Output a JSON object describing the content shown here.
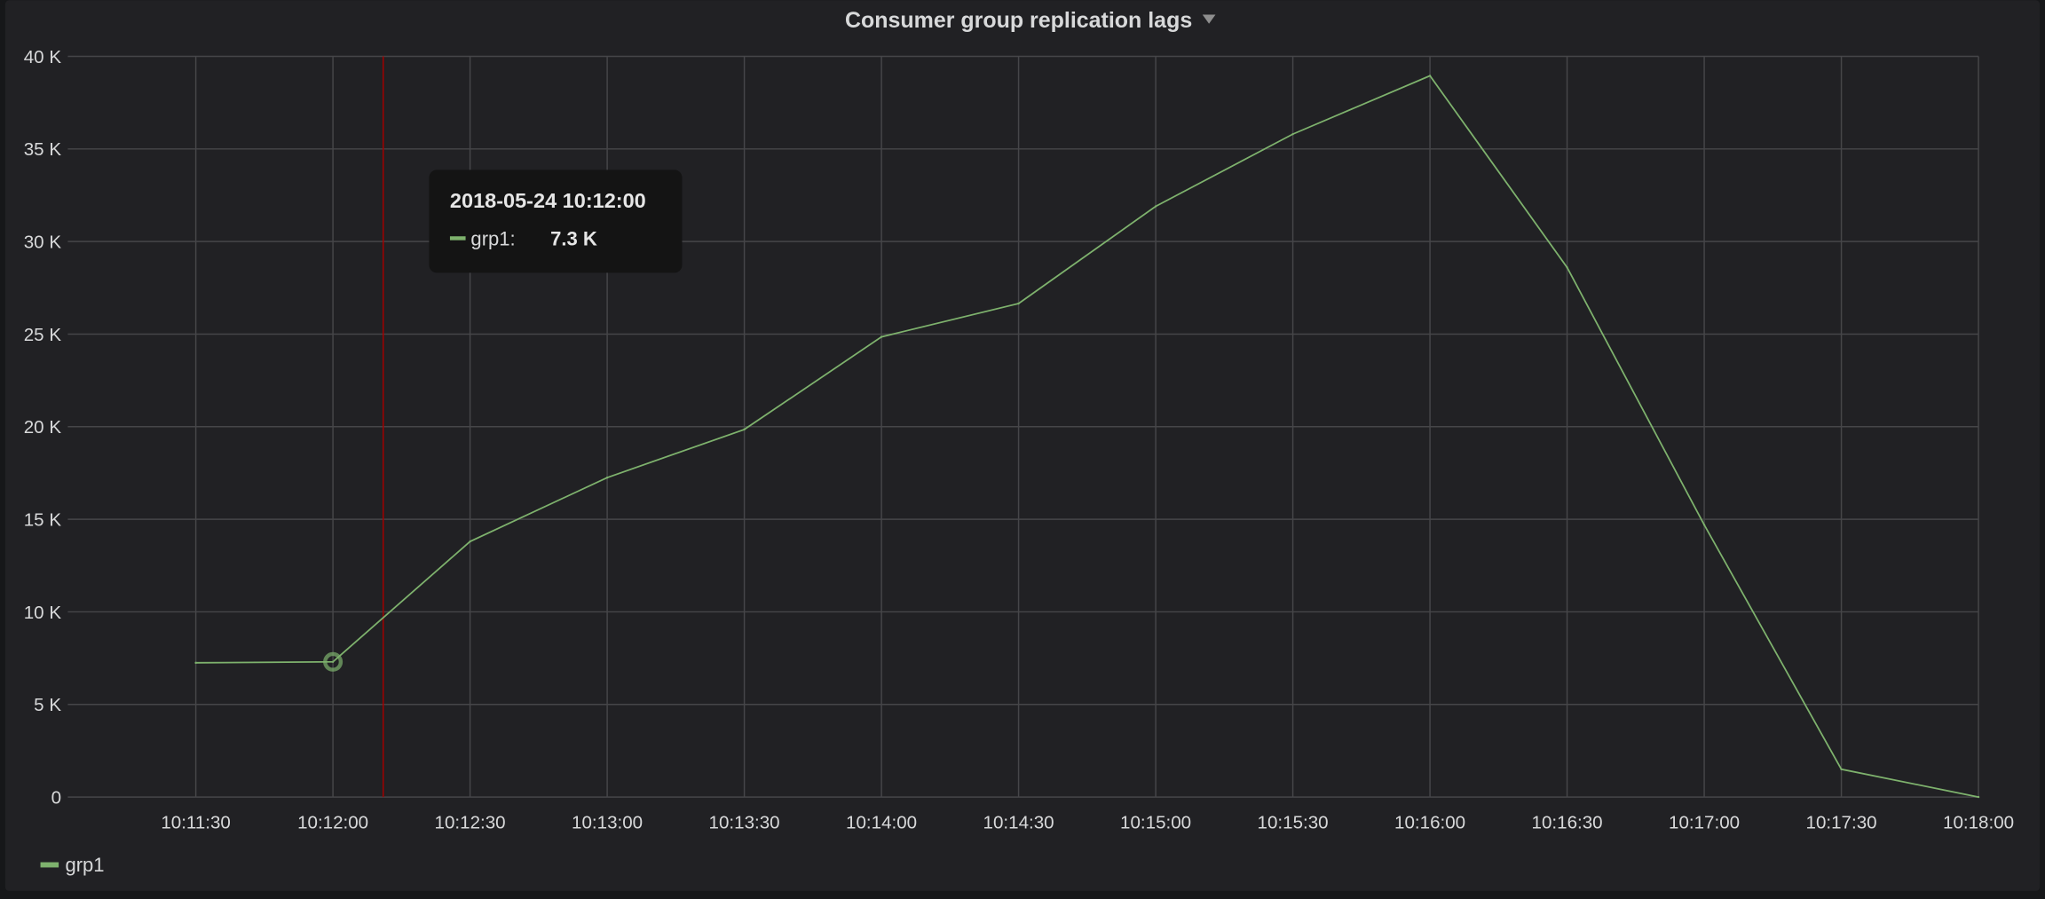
{
  "panel": {
    "title": "Consumer group replication lags",
    "menu_icon": "caret-down-icon"
  },
  "colors": {
    "background": "#212124",
    "series_grp1": "#7eb26d",
    "cursor": "#a30000",
    "grid": "#464649",
    "text": "#d8d9da",
    "tooltip_bg": "#141414"
  },
  "tooltip": {
    "time": "2018-05-24 10:12:00",
    "series": "grp1:",
    "value": "7.3 K"
  },
  "legend": [
    {
      "name": "grp1",
      "color": "#7eb26d"
    }
  ],
  "chart_data": {
    "type": "line",
    "title": "Consumer group replication lags",
    "xlabel": "",
    "ylabel": "",
    "xlim": [
      "10:11:02",
      "10:18:00"
    ],
    "ylim": [
      0,
      40000
    ],
    "grid": true,
    "legend_position": "bottom-left",
    "x_ticks": [
      "10:11:30",
      "10:12:00",
      "10:12:30",
      "10:13:00",
      "10:13:30",
      "10:14:00",
      "10:14:30",
      "10:15:00",
      "10:15:30",
      "10:16:00",
      "10:16:30",
      "10:17:00",
      "10:17:30",
      "10:18:00"
    ],
    "y_ticks": [
      "0",
      "5 K",
      "10 K",
      "15 K",
      "20 K",
      "25 K",
      "30 K",
      "35 K",
      "40 K"
    ],
    "y_tick_values": [
      0,
      5000,
      10000,
      15000,
      20000,
      25000,
      30000,
      35000,
      40000
    ],
    "hover_time": "10:12:11",
    "highlighted_point": {
      "x": "10:12:00",
      "y": 7300
    },
    "series": [
      {
        "name": "grp1",
        "color": "#7eb26d",
        "x": [
          "10:11:30",
          "10:12:00",
          "10:12:30",
          "10:13:00",
          "10:13:30",
          "10:14:00",
          "10:14:30",
          "10:15:00",
          "10:15:30",
          "10:16:00",
          "10:16:30",
          "10:17:00",
          "10:17:30",
          "10:18:00"
        ],
        "values": [
          7250,
          7300,
          13800,
          17250,
          19850,
          24850,
          26650,
          31900,
          35800,
          38950,
          28600,
          14700,
          1500,
          0
        ]
      }
    ]
  }
}
